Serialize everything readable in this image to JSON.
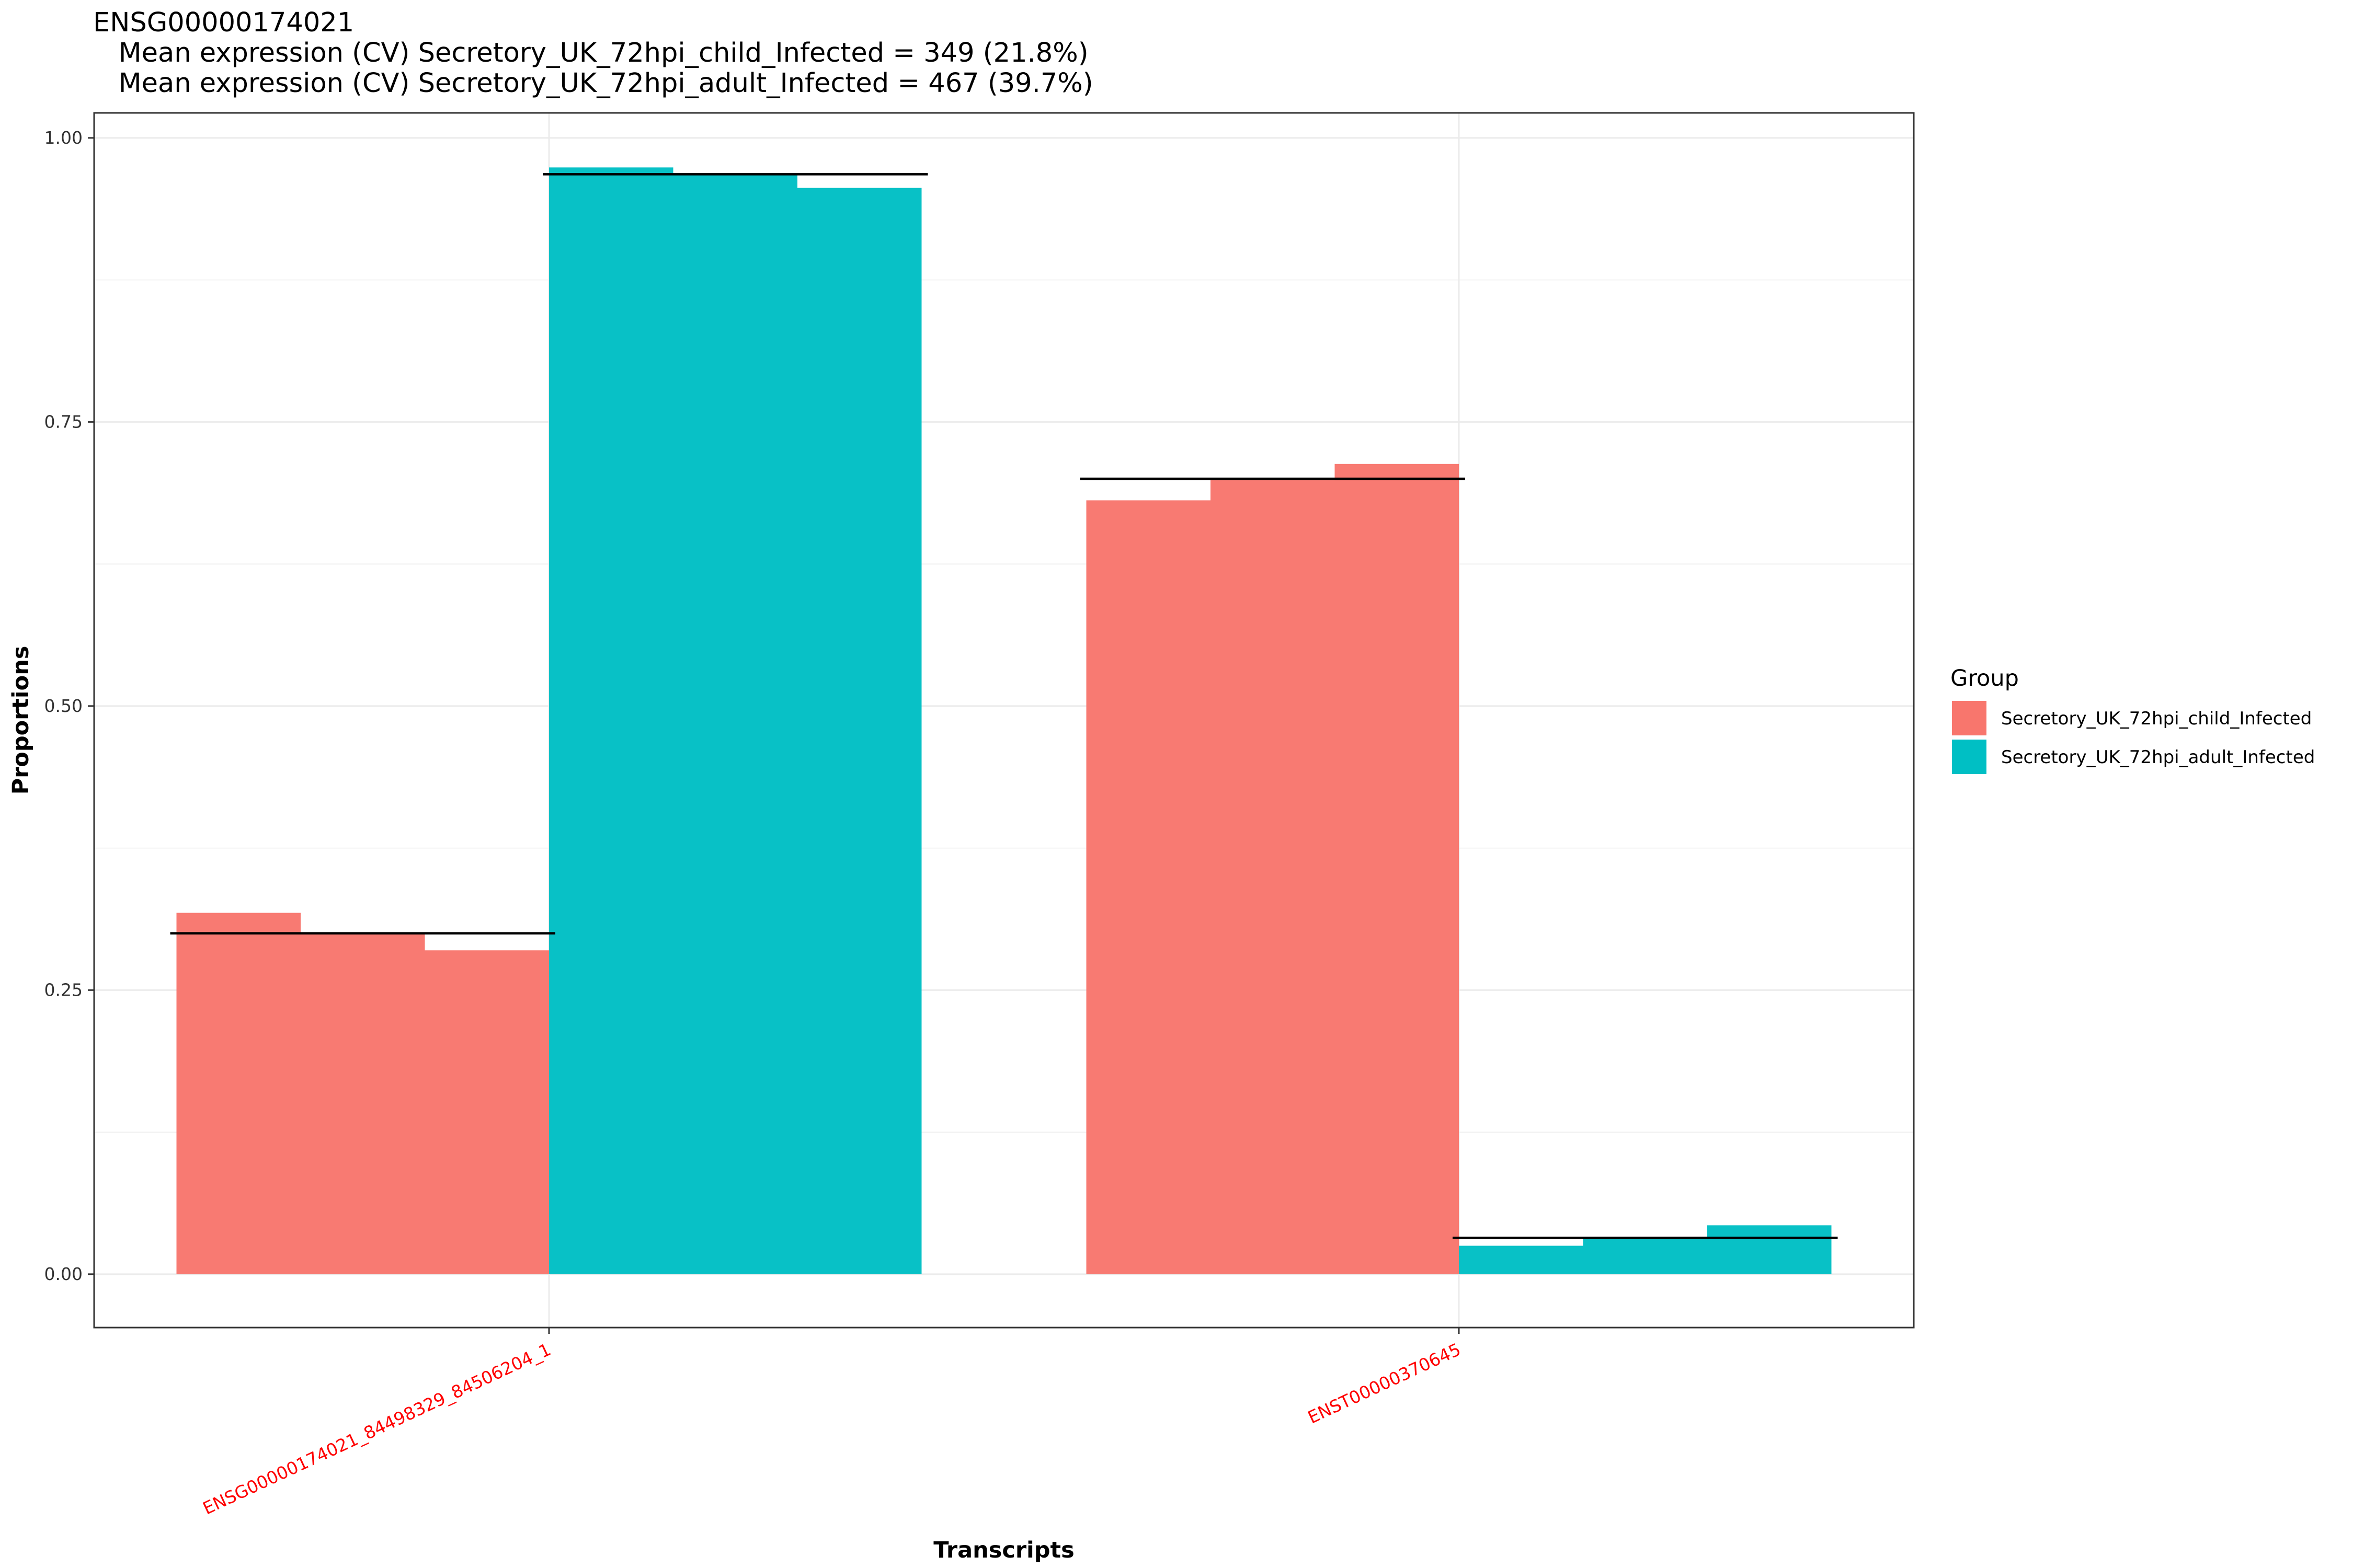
{
  "colors": {
    "child": "#F8766D",
    "adult": "#00BFC4",
    "grid": "#EBEBEB",
    "mean_line": "#000000",
    "x_tick_text": "#FF0000"
  },
  "chart_data": {
    "type": "bar",
    "title": "ENSG00000174021",
    "subtitle_lines": [
      "   Mean expression (CV) Secretory_UK_72hpi_child_Infected = 349 (21.8%)",
      "   Mean expression (CV) Secretory_UK_72hpi_adult_Infected = 467 (39.7%)"
    ],
    "xlabel": "Transcripts",
    "ylabel": "Proportions",
    "ylim": [
      -0.047,
      1.022
    ],
    "y_ticks": [
      0.0,
      0.25,
      0.5,
      0.75,
      1.0
    ],
    "y_tick_labels": [
      "0.00",
      "0.25",
      "0.50",
      "0.75",
      "1.00"
    ],
    "categories": [
      "ENSG00000174021_84498329_84506204_1",
      "ENST00000370645"
    ],
    "grid": true,
    "legend": {
      "title": "Group",
      "position": "right",
      "entries": [
        "Secretory_UK_72hpi_child_Infected",
        "Secretory_UK_72hpi_adult_Infected"
      ]
    },
    "series": [
      {
        "name": "Secretory_UK_72hpi_child_Infected",
        "color_key": "child",
        "sample_values": [
          [
            0.318,
            0.3,
            0.285
          ],
          [
            0.681,
            0.699,
            0.713
          ]
        ],
        "mean": [
          0.3,
          0.7
        ]
      },
      {
        "name": "Secretory_UK_72hpi_adult_Infected",
        "color_key": "adult",
        "sample_values": [
          [
            0.974,
            0.968,
            0.956
          ],
          [
            0.025,
            0.032,
            0.043
          ]
        ],
        "mean": [
          0.968,
          0.032
        ]
      }
    ]
  }
}
